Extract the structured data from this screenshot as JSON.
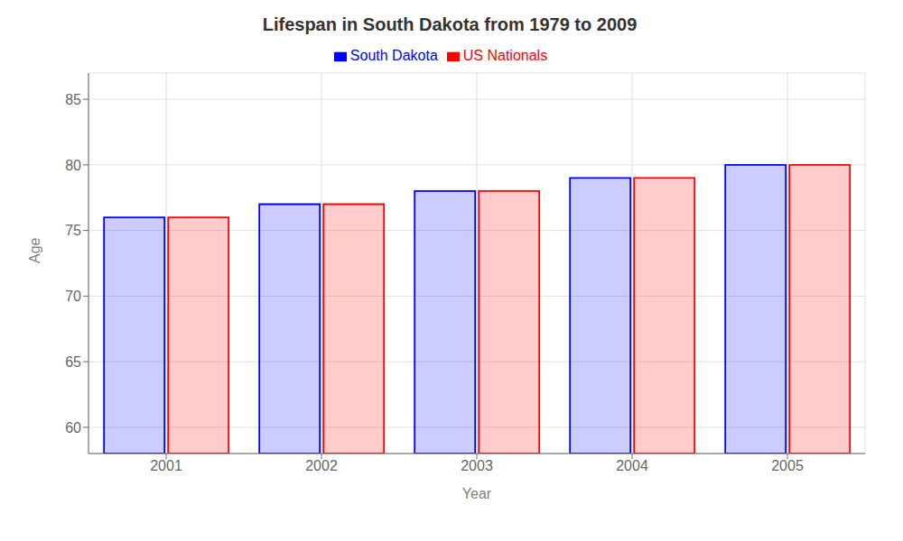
{
  "chart_data": {
    "type": "bar",
    "title": "Lifespan in South Dakota from 1979 to 2009",
    "xlabel": "Year",
    "ylabel": "Age",
    "categories": [
      "2001",
      "2002",
      "2003",
      "2004",
      "2005"
    ],
    "series": [
      {
        "name": "South Dakota",
        "color": "#0000ff",
        "values": [
          76,
          77,
          78,
          79,
          80
        ]
      },
      {
        "name": "US Nationals",
        "color": "#ff0000",
        "values": [
          76,
          77,
          78,
          79,
          80
        ]
      }
    ],
    "ylim": [
      58,
      87
    ],
    "yticks": [
      60,
      65,
      70,
      75,
      80,
      85
    ],
    "grid": true,
    "legend": "top"
  }
}
